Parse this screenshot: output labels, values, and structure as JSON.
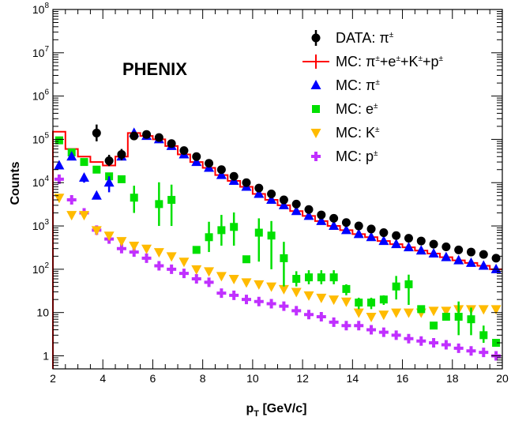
{
  "chart_data": {
    "type": "scatter",
    "xlabel": "p",
    "xlabel_sub": "T",
    "xlabel_unit": " [GeV/c]",
    "ylabel": "Counts",
    "xlim": [
      2,
      20
    ],
    "ylim": [
      0.5,
      100000000
    ],
    "y_scale": "log",
    "x_ticks": [
      2,
      4,
      6,
      8,
      10,
      12,
      14,
      16,
      18,
      20
    ],
    "y_ticks": [
      {
        "value": 1,
        "base": "1",
        "exp": ""
      },
      {
        "value": 10,
        "base": "10",
        "exp": ""
      },
      {
        "value": 100,
        "base": "10",
        "exp": "2"
      },
      {
        "value": 1000,
        "base": "10",
        "exp": "3"
      },
      {
        "value": 10000,
        "base": "10",
        "exp": "4"
      },
      {
        "value": 100000,
        "base": "10",
        "exp": "5"
      },
      {
        "value": 1000000,
        "base": "10",
        "exp": "6"
      },
      {
        "value": 10000000,
        "base": "10",
        "exp": "7"
      },
      {
        "value": 100000000,
        "base": "10",
        "exp": "8"
      }
    ],
    "annotation": "PHENIX",
    "legend_position": "top-right",
    "legend": [
      {
        "key": "data",
        "label": "DATA: π",
        "sup": "±"
      },
      {
        "key": "mc_total",
        "label": "MC: π",
        "sup": "±",
        "rest": [
          [
            "+e",
            "±"
          ],
          [
            "+K",
            "±"
          ],
          [
            "+p",
            "±"
          ]
        ]
      },
      {
        "key": "mc_pi",
        "label": "MC: π",
        "sup": "±"
      },
      {
        "key": "mc_e",
        "label": "MC: e",
        "sup": "±"
      },
      {
        "key": "mc_k",
        "label": "MC: K",
        "sup": "±"
      },
      {
        "key": "mc_p",
        "label": "MC: p",
        "sup": "±"
      }
    ],
    "colors": {
      "data": "#000000",
      "mc_total": "#ff0000",
      "mc_pi": "#0000ff",
      "mc_e": "#00e000",
      "mc_k": "#ffbb00",
      "mc_p": "#c030ff"
    },
    "series": [
      {
        "key": "data",
        "x": [
          3.75,
          4.25,
          4.75,
          5.25,
          5.75,
          6.25,
          6.75,
          7.25,
          7.75,
          8.25,
          8.75,
          9.25,
          9.75,
          10.25,
          10.75,
          11.25,
          11.75,
          12.25,
          12.75,
          13.25,
          13.75,
          14.25,
          14.75,
          15.25,
          15.75,
          16.25,
          16.75,
          17.25,
          17.75,
          18.25,
          18.75,
          19.25,
          19.75
        ],
        "y": [
          140000,
          32000,
          45000,
          120000,
          130000,
          110000,
          80000,
          55000,
          40000,
          28000,
          20000,
          14000,
          10000,
          7500,
          5500,
          4000,
          3200,
          2400,
          1800,
          1500,
          1200,
          1000,
          850,
          700,
          600,
          520,
          450,
          380,
          330,
          280,
          250,
          220,
          180
        ],
        "err_low": [
          50000,
          8000,
          12000,
          0,
          0,
          0,
          0,
          0,
          0,
          0,
          0,
          0,
          0,
          0,
          0,
          0,
          0,
          0,
          0,
          0,
          0,
          0,
          0,
          0,
          0,
          0,
          0,
          0,
          0,
          0,
          0,
          0,
          0
        ],
        "err_high": [
          80000,
          12000,
          15000,
          0,
          0,
          0,
          0,
          0,
          0,
          0,
          0,
          0,
          0,
          0,
          0,
          0,
          0,
          0,
          0,
          0,
          0,
          0,
          0,
          0,
          0,
          0,
          0,
          0,
          0,
          0,
          0,
          0,
          0
        ]
      },
      {
        "key": "mc_total",
        "type": "step",
        "edges": [
          2,
          2.5,
          3,
          3.5,
          4,
          4.5,
          5,
          5.5,
          6,
          6.5,
          7,
          7.5,
          8,
          8.5,
          9,
          9.5,
          10,
          10.5,
          11,
          11.5,
          12,
          12.5,
          13,
          13.5,
          14,
          14.5,
          15,
          15.5,
          16,
          16.5,
          17,
          17.5,
          18,
          18.5,
          19,
          19.5,
          20
        ],
        "values": [
          150000,
          60000,
          40000,
          30000,
          25000,
          40000,
          140000,
          120000,
          100000,
          70000,
          45000,
          30000,
          22000,
          15000,
          11000,
          8000,
          5500,
          4000,
          3000,
          2200,
          1700,
          1300,
          1000,
          800,
          650,
          550,
          450,
          380,
          320,
          270,
          230,
          190,
          160,
          140,
          120,
          100
        ],
        "low_value": 0.5
      },
      {
        "key": "mc_pi",
        "x": [
          2.25,
          2.75,
          3.25,
          3.75,
          4.25,
          4.75,
          5.25,
          5.75,
          6.25,
          6.75,
          7.25,
          7.75,
          8.25,
          8.75,
          9.25,
          9.75,
          10.25,
          10.75,
          11.25,
          11.75,
          12.25,
          12.75,
          13.25,
          13.75,
          14.25,
          14.75,
          15.25,
          15.75,
          16.25,
          16.75,
          17.25,
          17.75,
          18.25,
          18.75,
          19.25,
          19.75
        ],
        "y": [
          25000,
          40000,
          13000,
          5000,
          10000,
          40000,
          140000,
          120000,
          100000,
          70000,
          45000,
          30000,
          22000,
          15000,
          11000,
          8000,
          5500,
          4000,
          3000,
          2200,
          1700,
          1300,
          1000,
          800,
          650,
          550,
          450,
          380,
          320,
          270,
          230,
          190,
          160,
          140,
          120,
          100
        ],
        "err_low": [
          0,
          0,
          3000,
          0,
          4000,
          0,
          0,
          0,
          0,
          0,
          0,
          0,
          0,
          0,
          0,
          0,
          0,
          0,
          0,
          0,
          0,
          0,
          0,
          0,
          0,
          0,
          0,
          0,
          0,
          0,
          0,
          0,
          0,
          0,
          0,
          0
        ],
        "err_high": [
          0,
          0,
          3000,
          0,
          4000,
          0,
          0,
          0,
          0,
          0,
          0,
          0,
          0,
          0,
          0,
          0,
          0,
          0,
          0,
          0,
          0,
          0,
          0,
          0,
          0,
          0,
          0,
          0,
          0,
          0,
          0,
          0,
          0,
          0,
          0,
          0
        ]
      },
      {
        "key": "mc_e",
        "x": [
          2.25,
          2.75,
          3.25,
          3.75,
          4.25,
          4.75,
          5.25,
          6.25,
          6.75,
          7.75,
          8.25,
          8.75,
          9.25,
          9.75,
          10.25,
          10.75,
          11.25,
          11.75,
          12.25,
          12.75,
          13.25,
          13.75,
          14.25,
          14.75,
          15.25,
          15.75,
          16.25,
          16.75,
          17.25,
          17.75,
          18.25,
          18.75,
          19.25,
          19.75
        ],
        "y": [
          95000,
          50000,
          30000,
          20000,
          14000,
          12000,
          4500,
          3200,
          4000,
          280,
          550,
          800,
          950,
          170,
          700,
          600,
          180,
          60,
          65,
          65,
          65,
          35,
          17,
          17,
          20,
          40,
          45,
          12,
          5,
          8,
          8,
          7,
          3,
          2
        ],
        "err_low": [
          0,
          0,
          0,
          0,
          0,
          0,
          2500,
          2200,
          3000,
          0,
          300,
          450,
          600,
          0,
          550,
          500,
          140,
          20,
          20,
          20,
          20,
          10,
          5,
          5,
          5,
          20,
          30,
          0,
          0,
          0,
          5,
          4,
          1,
          0
        ],
        "err_high": [
          0,
          0,
          0,
          0,
          0,
          0,
          4000,
          7000,
          5000,
          0,
          700,
          1000,
          1100,
          0,
          800,
          700,
          250,
          30,
          30,
          30,
          30,
          10,
          5,
          5,
          5,
          30,
          30,
          0,
          0,
          0,
          10,
          6,
          2,
          0
        ]
      },
      {
        "key": "mc_k",
        "x": [
          2.25,
          2.75,
          3.25,
          3.75,
          4.25,
          4.75,
          5.25,
          5.75,
          6.25,
          6.75,
          7.25,
          7.75,
          8.25,
          8.75,
          9.25,
          9.75,
          10.25,
          10.75,
          11.25,
          11.75,
          12.25,
          12.75,
          13.25,
          13.75,
          14.25,
          14.75,
          15.25,
          15.75,
          16.25,
          16.75,
          17.25,
          17.75,
          18.25,
          18.75,
          19.25,
          19.75
        ],
        "y": [
          4500,
          1800,
          1800,
          800,
          600,
          450,
          350,
          300,
          250,
          200,
          150,
          100,
          90,
          70,
          60,
          50,
          45,
          40,
          35,
          30,
          25,
          22,
          20,
          18,
          10,
          8,
          9,
          10,
          10,
          10,
          11,
          11,
          12,
          12,
          12,
          12
        ]
      },
      {
        "key": "mc_p",
        "x": [
          2.25,
          2.75,
          3.25,
          3.75,
          4.25,
          4.75,
          5.25,
          5.75,
          6.25,
          6.75,
          7.25,
          7.75,
          8.25,
          8.75,
          9.25,
          9.75,
          10.25,
          10.75,
          11.25,
          11.75,
          12.25,
          12.75,
          13.25,
          13.75,
          14.25,
          14.75,
          15.25,
          15.75,
          16.25,
          16.75,
          17.25,
          17.75,
          18.25,
          18.75,
          19.25,
          19.75
        ],
        "y": [
          12000,
          4000,
          2000,
          800,
          500,
          300,
          250,
          180,
          120,
          100,
          80,
          60,
          50,
          28,
          25,
          20,
          18,
          16,
          14,
          11,
          9,
          8,
          6,
          5,
          5,
          4,
          3.5,
          3,
          2.5,
          2.2,
          2,
          1.8,
          1.5,
          1.3,
          1.2,
          1
        ]
      }
    ]
  }
}
